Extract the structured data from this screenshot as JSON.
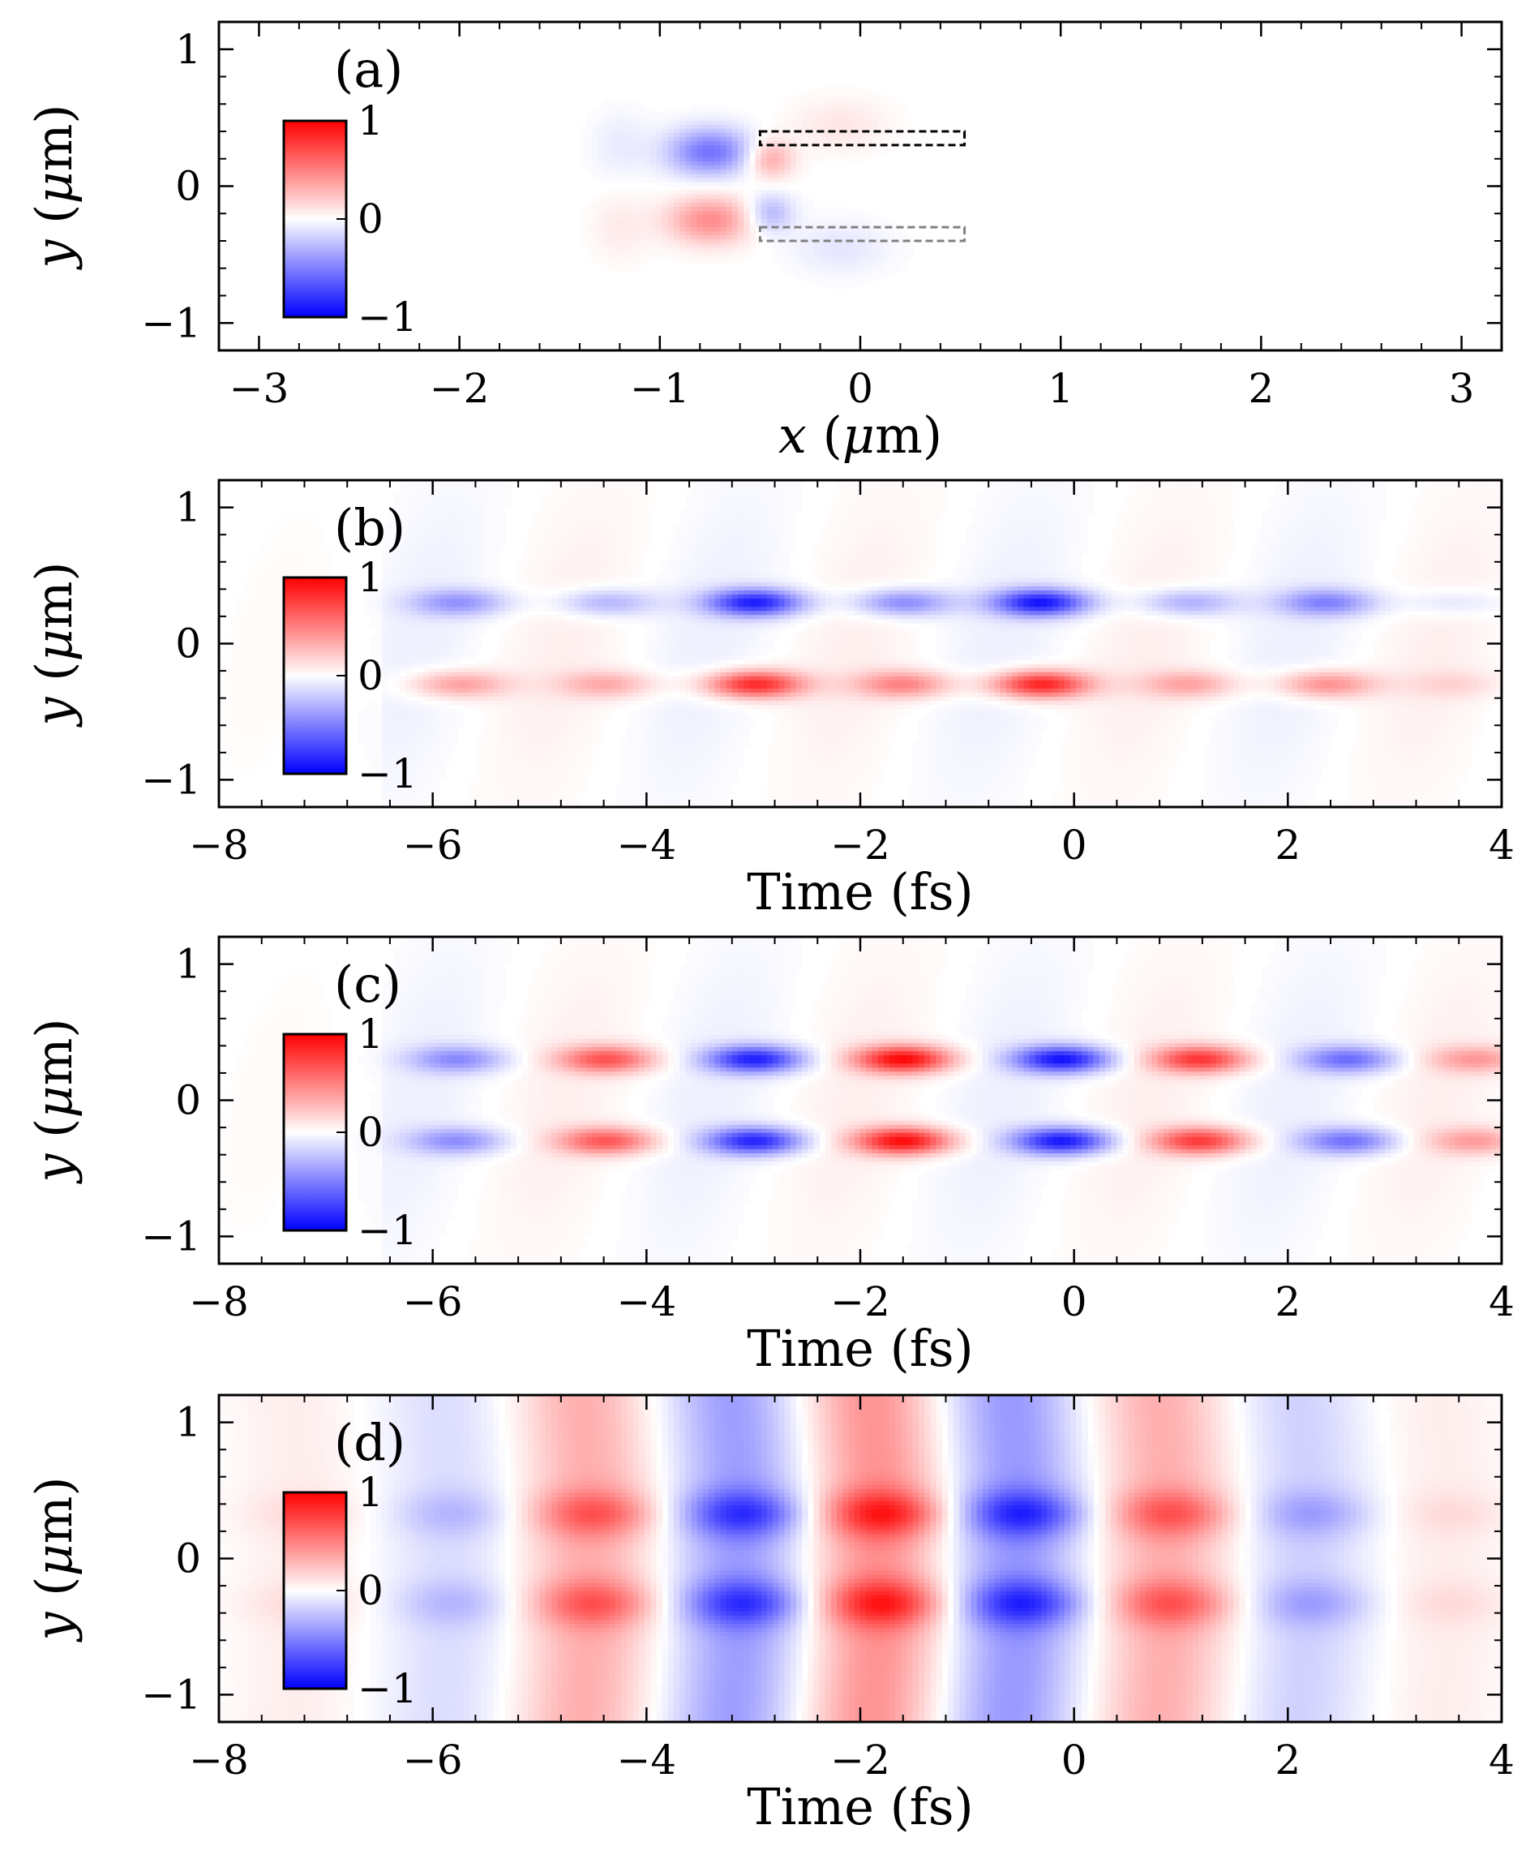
{
  "chart_data": [
    {
      "type": "heatmap",
      "panel_label": "(a)",
      "xlabel": "x (μm)",
      "ylabel": "y (μm)",
      "xlim": [
        -3.2,
        3.2
      ],
      "ylim": [
        -1.2,
        1.2
      ],
      "xticks": [
        -3,
        -2,
        -1,
        0,
        1,
        2,
        3
      ],
      "xtick_labels": [
        "−3",
        "−2",
        "−1",
        "0",
        "1",
        "2",
        "3"
      ],
      "yticks": [
        -1,
        0,
        1
      ],
      "ytick_labels": [
        "−1",
        "0",
        "1"
      ],
      "colorbar": {
        "ticks": [
          "1",
          "0",
          "−1"
        ],
        "colormap": "bwr",
        "range": [
          -1,
          1
        ]
      },
      "field": "spatial near-field of a two-strip structure; strong lobes near x = −0.6 to −0.8 μm, antisymmetric in y",
      "features": [
        {
          "cx": -0.75,
          "cy": 0.25,
          "rx": 0.22,
          "ry": 0.18,
          "value": -0.55
        },
        {
          "cx": -0.75,
          "cy": -0.25,
          "rx": 0.22,
          "ry": 0.18,
          "value": 0.45
        },
        {
          "cx": -0.45,
          "cy": 0.2,
          "rx": 0.12,
          "ry": 0.15,
          "value": 0.35
        },
        {
          "cx": -0.45,
          "cy": -0.2,
          "rx": 0.12,
          "ry": 0.15,
          "value": -0.3
        },
        {
          "cx": -1.2,
          "cy": 0.3,
          "rx": 0.15,
          "ry": 0.25,
          "value": -0.08
        },
        {
          "cx": -1.2,
          "cy": -0.3,
          "rx": 0.15,
          "ry": 0.25,
          "value": 0.08
        },
        {
          "cx": -0.1,
          "cy": 0.45,
          "rx": 0.25,
          "ry": 0.2,
          "value": 0.1
        },
        {
          "cx": -0.1,
          "cy": -0.45,
          "rx": 0.25,
          "ry": 0.2,
          "value": -0.1
        }
      ],
      "structures": [
        {
          "x0": -0.5,
          "x1": 0.52,
          "y0": 0.3,
          "y1": 0.4,
          "color": "#000000"
        },
        {
          "x0": -0.5,
          "x1": 0.52,
          "y0": -0.4,
          "y1": -0.3,
          "color": "#808080"
        }
      ]
    },
    {
      "type": "heatmap",
      "panel_label": "(b)",
      "xlabel": "Time (fs)",
      "ylabel": "y (μm)",
      "xlim": [
        -8,
        4
      ],
      "ylim": [
        -1.2,
        1.2
      ],
      "xticks": [
        -8,
        -6,
        -4,
        -2,
        0,
        2,
        4
      ],
      "xtick_labels": [
        "−8",
        "−6",
        "−4",
        "−2",
        "0",
        "2",
        "4"
      ],
      "yticks": [
        -1,
        0,
        1
      ],
      "ytick_labels": [
        "−1",
        "0",
        "1"
      ],
      "colorbar": {
        "ticks": [
          "1",
          "0",
          "−1"
        ],
        "colormap": "bwr",
        "range": [
          -1,
          1
        ]
      },
      "field": "field along strips vs time; lobes near y = ±0.3 μm, mostly blue at +y and red at −y",
      "mode": "strip",
      "oscillation": {
        "centers": [
          -5.8,
          -4.4,
          -3.0,
          -1.6,
          -0.3,
          1.1,
          2.4,
          3.6
        ],
        "period": 2.7,
        "antisymmetric": true,
        "top_bias": -0.45,
        "envelope_peak": -1.5,
        "envelope_width": 3.2
      }
    },
    {
      "type": "heatmap",
      "panel_label": "(c)",
      "xlabel": "Time (fs)",
      "ylabel": "y (μm)",
      "xlim": [
        -8,
        4
      ],
      "ylim": [
        -1.2,
        1.2
      ],
      "xticks": [
        -8,
        -6,
        -4,
        -2,
        0,
        2,
        4
      ],
      "xtick_labels": [
        "−8",
        "−6",
        "−4",
        "−2",
        "0",
        "2",
        "4"
      ],
      "yticks": [
        -1,
        0,
        1
      ],
      "ytick_labels": [
        "−1",
        "0",
        "1"
      ],
      "colorbar": {
        "ticks": [
          "1",
          "0",
          "−1"
        ],
        "colormap": "bwr",
        "range": [
          -1,
          1
        ]
      },
      "field": "field along strips vs time; alternating red and blue lobes near y = ±0.3 μm",
      "mode": "strip",
      "oscillation": {
        "centers": [
          -5.8,
          -4.4,
          -3.0,
          -1.6,
          -0.1,
          1.2,
          2.6,
          3.8
        ],
        "period": 2.7,
        "antisymmetric": false,
        "top_bias": 0.0,
        "envelope_peak": -1.2,
        "envelope_width": 3.6
      }
    },
    {
      "type": "heatmap",
      "panel_label": "(d)",
      "xlabel": "Time (fs)",
      "ylabel": "y (μm)",
      "xlim": [
        -8,
        4
      ],
      "ylim": [
        -1.2,
        1.2
      ],
      "xticks": [
        -8,
        -6,
        -4,
        -2,
        0,
        2,
        4
      ],
      "xtick_labels": [
        "−8",
        "−6",
        "−4",
        "−2",
        "0",
        "2",
        "4"
      ],
      "yticks": [
        -1,
        0,
        1
      ],
      "ytick_labels": [
        "−1",
        "0",
        "1"
      ],
      "colorbar": {
        "ticks": [
          "1",
          "0",
          "−1"
        ],
        "colormap": "bwr",
        "range": [
          -1,
          1
        ]
      },
      "field": "incident field vs time; full-height vertical bands with peaks near y = ±0.33 μm",
      "mode": "band",
      "bands": [
        {
          "t": -7.2,
          "v": 0.15
        },
        {
          "t": -5.8,
          "v": -0.3
        },
        {
          "t": -4.5,
          "v": 0.7
        },
        {
          "t": -3.1,
          "v": -0.85
        },
        {
          "t": -1.8,
          "v": 0.95
        },
        {
          "t": -0.5,
          "v": -0.9
        },
        {
          "t": 0.9,
          "v": 0.7
        },
        {
          "t": 2.2,
          "v": -0.4
        },
        {
          "t": 3.5,
          "v": 0.15
        }
      ]
    }
  ]
}
